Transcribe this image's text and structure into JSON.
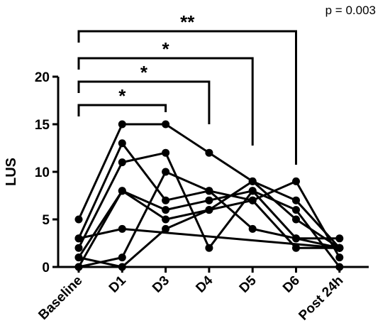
{
  "chart_data": {
    "type": "line",
    "title": "",
    "xlabel": "",
    "ylabel": "LUS",
    "categories": [
      "Baseline",
      "D1",
      "D3",
      "D4",
      "D5",
      "D6",
      "Post 24h"
    ],
    "ylim": [
      0,
      20
    ],
    "yticks": [
      0,
      5,
      10,
      15,
      20
    ],
    "grid": false,
    "legend": "none",
    "p_value_label": "p = 0.003",
    "series": [
      {
        "values": [
          5,
          15,
          15,
          12,
          9,
          7,
          2
        ]
      },
      {
        "values": [
          3,
          13,
          7,
          8,
          7,
          9,
          1
        ]
      },
      {
        "values": [
          2,
          11,
          12,
          2,
          8,
          3,
          3
        ]
      },
      {
        "values": [
          1,
          8,
          5,
          6,
          9,
          5,
          2
        ]
      },
      {
        "values": [
          0,
          8,
          6,
          7,
          8,
          6,
          0
        ]
      },
      {
        "values": [
          3,
          4,
          null,
          null,
          null,
          null,
          2
        ]
      },
      {
        "values": [
          0,
          1,
          10,
          8,
          4,
          3,
          2
        ]
      },
      {
        "values": [
          1,
          0,
          4,
          6,
          7,
          2,
          2
        ]
      }
    ],
    "comparisons": [
      {
        "from": "Baseline",
        "to": "D3",
        "label": "*"
      },
      {
        "from": "Baseline",
        "to": "D4",
        "label": "*"
      },
      {
        "from": "Baseline",
        "to": "D5",
        "label": "*"
      },
      {
        "from": "Baseline",
        "to": "D6",
        "label": "**"
      }
    ],
    "colors": {
      "line": "#000000",
      "marker": "#000000",
      "axis": "#000000"
    }
  }
}
